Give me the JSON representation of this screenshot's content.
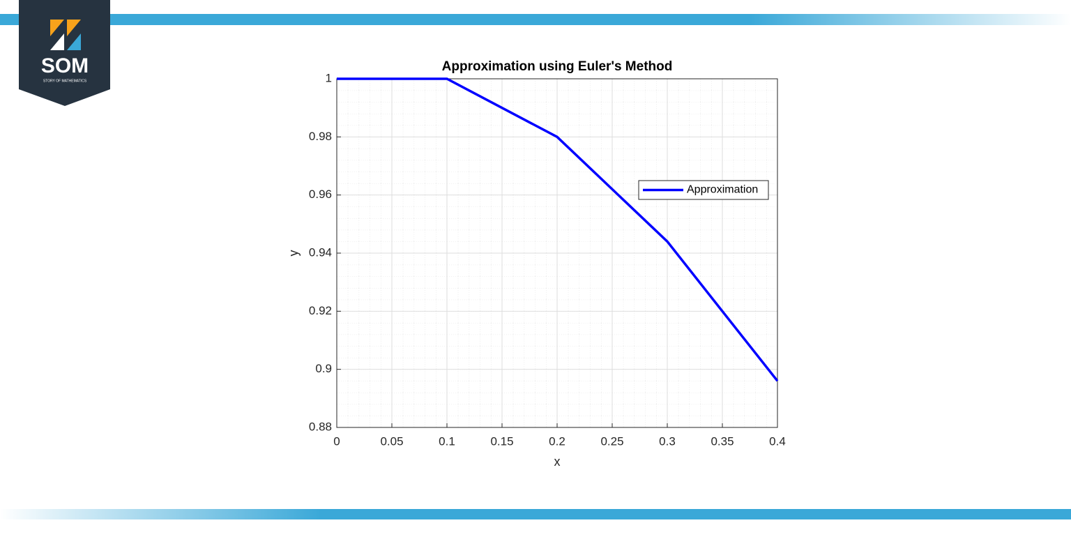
{
  "logo": {
    "title": "SOM",
    "subtitle": "STORY OF MATHEMATICS"
  },
  "chart_data": {
    "type": "line",
    "title": "Approximation using Euler's Method",
    "x_label": "x",
    "y_label": "y",
    "x": [
      0,
      0.1,
      0.2,
      0.3,
      0.4
    ],
    "series": [
      {
        "name": "Approximation",
        "color": "#0000ff",
        "values": [
          1,
          1,
          0.98,
          0.944,
          0.896
        ]
      }
    ],
    "xlim": [
      0,
      0.4
    ],
    "xticks": [
      0,
      0.05,
      0.1,
      0.15,
      0.2,
      0.25,
      0.3,
      0.35,
      0.4
    ],
    "ylim": [
      0.88,
      1
    ],
    "yticks": [
      0.88,
      0.9,
      0.92,
      0.94,
      0.96,
      0.98,
      1
    ],
    "grid": true,
    "legend": "right"
  }
}
